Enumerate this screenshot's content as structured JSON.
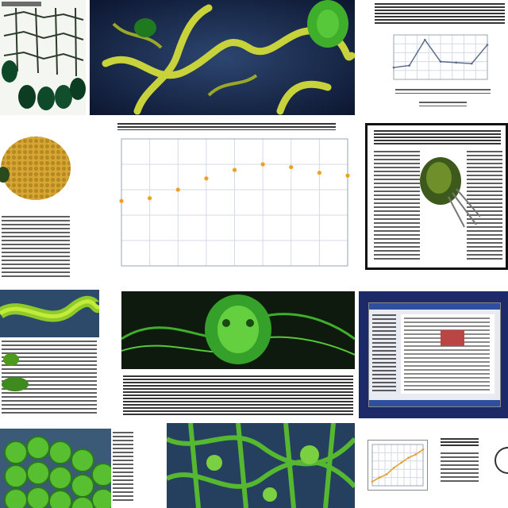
{
  "collage": {
    "headlines": {
      "top_right": "",
      "center": ""
    }
  },
  "chart_data": [
    {
      "type": "scatter",
      "title": "",
      "x": [
        1,
        2,
        3,
        4,
        5,
        6,
        7,
        8,
        9
      ],
      "y": [
        23,
        24,
        27,
        31,
        34,
        36,
        35,
        33,
        32
      ],
      "ylim": [
        0,
        45
      ],
      "grid": true,
      "color": "#f0a020"
    },
    {
      "type": "line",
      "title": "",
      "x": [
        1,
        2,
        3,
        4,
        5,
        6,
        7
      ],
      "y": [
        12,
        14,
        40,
        18,
        17,
        16,
        35
      ],
      "ylim": [
        0,
        45
      ],
      "grid": true,
      "color": "#5c6c8c"
    },
    {
      "type": "line",
      "title": "",
      "x": [
        1,
        2,
        3,
        4,
        5,
        6,
        7,
        8
      ],
      "y": [
        5,
        10,
        14,
        22,
        28,
        34,
        38,
        44
      ],
      "ylim": [
        0,
        50
      ],
      "grid": true,
      "color": "#e0a030"
    }
  ]
}
